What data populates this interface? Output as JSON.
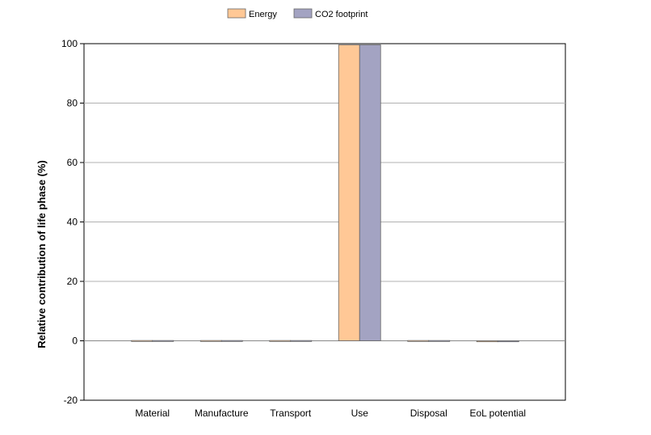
{
  "chart_data": {
    "type": "bar",
    "categories": [
      "Material",
      "Manufacture",
      "Transport",
      "Use",
      "Disposal",
      "EoL potential"
    ],
    "series": [
      {
        "name": "Energy",
        "values": [
          0.1,
          0.1,
          0.1,
          99.6,
          0.1,
          -0.2
        ],
        "color": "#ffc896"
      },
      {
        "name": "CO2 footprint",
        "values": [
          0.1,
          0.1,
          0.1,
          99.6,
          0.1,
          -0.2
        ],
        "color": "#a3a3c2"
      }
    ],
    "xlabel": "",
    "ylabel": "Relative contribution of life phase (%)",
    "ylim": [
      -20,
      100
    ],
    "yticks": [
      -20,
      0,
      20,
      40,
      60,
      80,
      100
    ],
    "grid": true,
    "legend_position": "top-center"
  }
}
